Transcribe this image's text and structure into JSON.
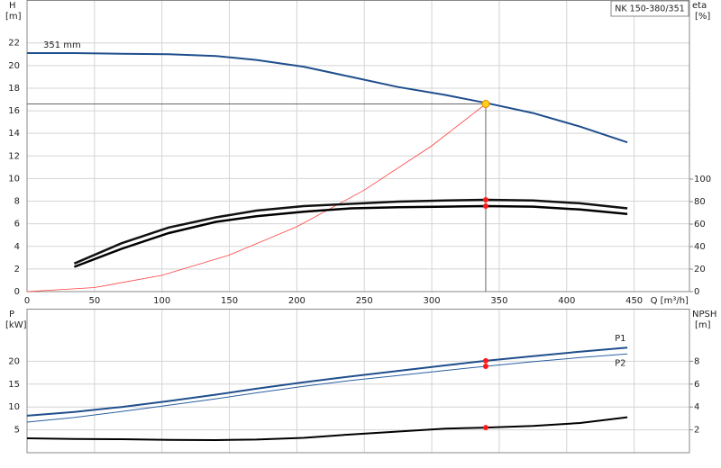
{
  "chart_data": [
    {
      "type": "line",
      "title": "NK 150-380/351",
      "x_label": "Q [m³/h]",
      "y_label": "H",
      "y_unit": "[m]",
      "y2_label": "eta",
      "y2_unit": "[%]",
      "xlim": [
        0,
        491
      ],
      "ylim": [
        0,
        25.8
      ],
      "y2lim": [
        0,
        259.2
      ],
      "xticks": [
        0,
        50,
        100,
        150,
        200,
        250,
        300,
        350,
        400,
        450
      ],
      "yticks": [
        0,
        2,
        4,
        6,
        8,
        10,
        12,
        14,
        16,
        18,
        20,
        22
      ],
      "y2ticks": [
        0,
        20,
        40,
        60,
        80,
        100
      ],
      "grid": true,
      "marker_color": "#ff1a1a",
      "duty_point": {
        "x": 340,
        "y": 16.6,
        "color": "#ffd21a"
      },
      "series": [
        {
          "name": "351 mm",
          "label_at": "start",
          "color": "#1f4e8c",
          "width": 2,
          "x": [
            0,
            35,
            70,
            105,
            140,
            170,
            205,
            240,
            275,
            310,
            340,
            375,
            410,
            445
          ],
          "values": [
            21.1,
            21.1,
            21.05,
            21.0,
            20.85,
            20.5,
            19.9,
            19.0,
            18.1,
            17.4,
            16.7,
            15.8,
            14.6,
            13.2
          ]
        },
        {
          "color": "#ff4040",
          "width": 0.8,
          "x": [
            0,
            50,
            100,
            150,
            200,
            250,
            300,
            340
          ],
          "values": [
            0,
            0.36,
            1.44,
            3.23,
            5.74,
            8.98,
            12.9,
            16.6
          ]
        },
        {
          "axis": "y2",
          "color": "#111111",
          "width": 2.5,
          "marker": true,
          "x": [
            35,
            70,
            105,
            140,
            170,
            205,
            240,
            275,
            310,
            340,
            375,
            410,
            445
          ],
          "values": [
            25,
            43,
            57,
            66,
            72,
            76,
            78,
            80,
            81,
            81.6,
            81,
            78.5,
            74
          ]
        },
        {
          "axis": "y2",
          "color": "#000000",
          "width": 2.5,
          "marker": true,
          "x": [
            35,
            70,
            105,
            140,
            170,
            205,
            240,
            275,
            310,
            340,
            375,
            410,
            445
          ],
          "values": [
            22,
            38,
            52,
            62,
            67,
            71,
            74,
            75,
            75.5,
            76,
            75.5,
            73,
            69
          ]
        }
      ]
    },
    {
      "type": "line",
      "y_label": "P",
      "y_unit": "[kW]",
      "y2_label": "NPSH",
      "y2_unit": "[m]",
      "xlim": [
        0,
        491
      ],
      "ylim": [
        0,
        31.5
      ],
      "y2lim": [
        0,
        12.6
      ],
      "yticks": [
        5,
        10,
        15,
        20
      ],
      "y2ticks": [
        2,
        4,
        6,
        8
      ],
      "grid": true,
      "marker_color": "#ff1a1a",
      "marker_x": 340,
      "series": [
        {
          "name": "P1",
          "label_at": "end",
          "color": "#1f4e8c",
          "width": 2,
          "marker": true,
          "x": [
            0,
            35,
            70,
            105,
            140,
            170,
            205,
            240,
            275,
            310,
            340,
            375,
            410,
            445
          ],
          "values": [
            8.1,
            8.9,
            10.0,
            11.3,
            12.7,
            14.0,
            15.4,
            16.7,
            17.9,
            19.1,
            20.1,
            21.1,
            22.1,
            23.0
          ]
        },
        {
          "name": "P2",
          "label_at": "end",
          "color": "#2a5fa0",
          "width": 1,
          "marker": true,
          "x": [
            0,
            35,
            70,
            105,
            140,
            170,
            205,
            240,
            275,
            310,
            340,
            375,
            410,
            445
          ],
          "values": [
            6.7,
            7.7,
            9.0,
            10.4,
            11.8,
            13.1,
            14.5,
            15.8,
            16.9,
            18.0,
            18.9,
            19.9,
            20.8,
            21.6
          ]
        },
        {
          "axis": "y2",
          "color": "#000000",
          "width": 2,
          "marker": true,
          "x": [
            0,
            35,
            70,
            105,
            140,
            170,
            205,
            240,
            275,
            310,
            340,
            375,
            410,
            445
          ],
          "values": [
            1.26,
            1.2,
            1.18,
            1.13,
            1.1,
            1.15,
            1.3,
            1.6,
            1.85,
            2.1,
            2.2,
            2.35,
            2.6,
            3.1
          ]
        }
      ]
    }
  ]
}
